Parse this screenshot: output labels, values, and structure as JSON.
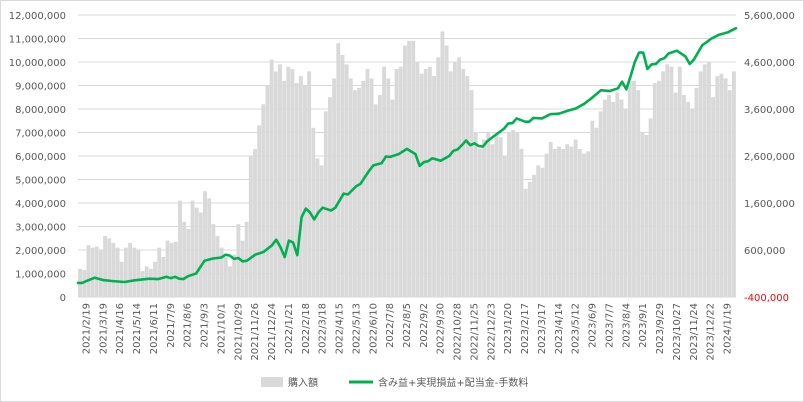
{
  "chart_data": {
    "type": "bar+line",
    "title": "",
    "grid": "horizontal",
    "legend_position": "bottom",
    "left_axis": {
      "ylim": [
        0,
        12000000
      ],
      "ticks": [
        "0",
        "1,000,000",
        "2,000,000",
        "3,000,000",
        "4,000,000",
        "5,000,000",
        "6,000,000",
        "7,000,000",
        "8,000,000",
        "9,000,000",
        "10,000,000",
        "11,000,000",
        "12,000,000"
      ],
      "tick_values": [
        0,
        1000000,
        2000000,
        3000000,
        4000000,
        5000000,
        6000000,
        7000000,
        8000000,
        9000000,
        10000000,
        11000000,
        12000000
      ]
    },
    "right_axis": {
      "ylim": [
        -400000,
        5600000
      ],
      "ticks": [
        "-400,000",
        "600,000",
        "1,600,000",
        "2,600,000",
        "3,600,000",
        "4,600,000",
        "5,600,000"
      ],
      "tick_values": [
        -400000,
        600000,
        1600000,
        2600000,
        3600000,
        4600000,
        5600000
      ]
    },
    "x_start": "2021-02-19",
    "x_end": "2024-02-16",
    "x_tick_labels": [
      "2021/2/19",
      "2021/3/19",
      "2021/4/16",
      "2021/5/14",
      "2021/6/11",
      "2021/7/9",
      "2021/8/6",
      "2021/9/3",
      "2021/10/1",
      "2021/10/29",
      "2021/11/26",
      "2021/12/24",
      "2022/1/21",
      "2022/2/18",
      "2022/3/18",
      "2022/4/15",
      "2022/5/13",
      "2022/6/10",
      "2022/7/8",
      "2022/8/5",
      "2022/9/2",
      "2022/9/30",
      "2022/10/28",
      "2022/11/25",
      "2022/12/23",
      "2023/1/20",
      "2023/2/17",
      "2023/3/17",
      "2023/4/14",
      "2023/5/12",
      "2023/6/9",
      "2023/7/7",
      "2023/8/4",
      "2023/9/1",
      "2023/9/29",
      "2023/10/27",
      "2023/11/24",
      "2023/12/22",
      "2024/1/19"
    ],
    "series": [
      {
        "name": "購入額",
        "type": "bar",
        "axis": "left",
        "color": "#d9d9d9",
        "values": [
          1200000,
          1150000,
          2200000,
          2100000,
          2150000,
          2000000,
          2600000,
          2500000,
          2300000,
          2100000,
          1500000,
          2100000,
          2300000,
          2100000,
          2000000,
          1100000,
          1300000,
          1200000,
          1500000,
          2100000,
          1700000,
          2400000,
          2300000,
          2350000,
          4100000,
          3200000,
          2900000,
          4100000,
          3800000,
          3600000,
          4500000,
          4200000,
          3100000,
          2600000,
          2100000,
          1700000,
          1300000,
          1800000,
          3100000,
          2400000,
          3200000,
          6000000,
          6300000,
          7300000,
          8200000,
          9000000,
          10100000,
          9600000,
          9900000,
          9200000,
          9800000,
          9700000,
          9100000,
          9400000,
          9000000,
          9600000,
          7200000,
          5900000,
          5600000,
          7900000,
          8500000,
          9300000,
          10800000,
          10300000,
          9900000,
          9300000,
          8800000,
          8900000,
          9200000,
          9700000,
          9300000,
          8200000,
          8600000,
          9800000,
          9300000,
          8400000,
          9700000,
          9800000,
          10700000,
          10900000,
          10900000,
          10000000,
          9500000,
          9700000,
          9800000,
          9400000,
          10200000,
          11300000,
          10700000,
          9600000,
          10000000,
          10200000,
          9700000,
          9400000,
          8800000,
          7000000,
          6300000,
          6700000,
          7000000,
          6500000,
          6900000,
          6800000,
          6000000,
          7000000,
          7100000,
          7000000,
          6300000,
          4600000,
          4900000,
          5200000,
          5600000,
          5500000,
          6100000,
          6600000,
          6300000,
          6400000,
          6300000,
          6500000,
          6400000,
          6700000,
          6300000,
          6100000,
          6200000,
          7500000,
          7200000,
          7900000,
          8400000,
          8600000,
          8300000,
          8700000,
          8400000,
          8000000,
          9200000,
          9200000,
          8800000,
          7000000,
          6900000,
          7600000,
          9100000,
          9200000,
          9600000,
          9900000,
          9800000,
          8700000,
          9800000,
          8600000,
          8300000,
          8000000,
          8900000,
          9600000,
          9900000,
          10000000,
          8500000,
          9400000,
          9500000,
          9300000,
          8800000,
          9600000
        ]
      },
      {
        "name": "含み益+実現損益+配当金-手数料",
        "type": "line",
        "axis": "right",
        "color": "#00b050",
        "dates": [
          "2021-02-19",
          "2021-02-26",
          "2021-03-05",
          "2021-03-19",
          "2021-04-02",
          "2021-04-16",
          "2021-05-07",
          "2021-05-21",
          "2021-06-04",
          "2021-06-18",
          "2021-07-02",
          "2021-07-16",
          "2021-07-23",
          "2021-07-30",
          "2021-08-06",
          "2021-08-13",
          "2021-08-20",
          "2021-09-03",
          "2021-09-17",
          "2021-10-01",
          "2021-10-15",
          "2021-10-22",
          "2021-10-29",
          "2021-11-05",
          "2021-11-12",
          "2021-11-19",
          "2021-11-26",
          "2021-12-10",
          "2021-12-24",
          "2022-01-07",
          "2022-01-14",
          "2022-01-21",
          "2022-01-28",
          "2022-02-04",
          "2022-02-11",
          "2022-02-18",
          "2022-02-25",
          "2022-03-04",
          "2022-03-11",
          "2022-03-18",
          "2022-03-25",
          "2022-04-01",
          "2022-04-15",
          "2022-04-22",
          "2022-05-06",
          "2022-05-13",
          "2022-05-27",
          "2022-06-03",
          "2022-06-10",
          "2022-06-17",
          "2022-06-24",
          "2022-07-08",
          "2022-07-15",
          "2022-07-22",
          "2022-08-05",
          "2022-08-19",
          "2022-09-02",
          "2022-09-09",
          "2022-09-16",
          "2022-09-23",
          "2022-09-30",
          "2022-10-14",
          "2022-10-28",
          "2022-11-04",
          "2022-11-11",
          "2022-11-18",
          "2022-11-25",
          "2022-12-02",
          "2022-12-09",
          "2022-12-16",
          "2022-12-23",
          "2022-12-30",
          "2023-01-13",
          "2023-01-27",
          "2023-02-03",
          "2023-02-10",
          "2023-02-17",
          "2023-03-03",
          "2023-03-10",
          "2023-03-17",
          "2023-03-31",
          "2023-04-14",
          "2023-04-28",
          "2023-05-12",
          "2023-05-26",
          "2023-06-09",
          "2023-06-23",
          "2023-07-07",
          "2023-07-21",
          "2023-08-04",
          "2023-08-11",
          "2023-08-18",
          "2023-08-25",
          "2023-09-01",
          "2023-09-08",
          "2023-09-15",
          "2023-09-22",
          "2023-09-29",
          "2023-10-06",
          "2023-10-13",
          "2023-10-20",
          "2023-10-27",
          "2023-11-10",
          "2023-11-24",
          "2023-12-01",
          "2023-12-08",
          "2023-12-22",
          "2023-12-29",
          "2024-01-05",
          "2024-01-19",
          "2024-02-02",
          "2024-02-16"
        ],
        "values": [
          -100000,
          -100000,
          -60000,
          10000,
          -40000,
          -60000,
          -80000,
          -50000,
          -30000,
          -10000,
          -20000,
          30000,
          0,
          30000,
          -10000,
          -20000,
          40000,
          100000,
          370000,
          420000,
          440000,
          500000,
          480000,
          410000,
          430000,
          360000,
          370000,
          500000,
          560000,
          700000,
          820000,
          660000,
          450000,
          800000,
          760000,
          490000,
          1300000,
          1480000,
          1400000,
          1250000,
          1400000,
          1500000,
          1440000,
          1500000,
          1800000,
          1780000,
          1960000,
          2010000,
          2150000,
          2280000,
          2400000,
          2450000,
          2590000,
          2580000,
          2640000,
          2750000,
          2640000,
          2390000,
          2470000,
          2490000,
          2550000,
          2500000,
          2600000,
          2710000,
          2740000,
          2830000,
          2930000,
          2830000,
          2870000,
          2810000,
          2800000,
          2910000,
          3050000,
          3180000,
          3290000,
          3300000,
          3400000,
          3330000,
          3330000,
          3410000,
          3400000,
          3490000,
          3500000,
          3560000,
          3610000,
          3710000,
          3850000,
          4000000,
          3980000,
          4040000,
          4180000,
          4020000,
          4300000,
          4600000,
          4800000,
          4800000,
          4450000,
          4550000,
          4560000,
          4650000,
          4680000,
          4780000,
          4840000,
          4720000,
          4560000,
          4650000,
          4960000,
          5020000,
          5090000,
          5180000,
          5230000,
          5320000
        ]
      }
    ]
  }
}
